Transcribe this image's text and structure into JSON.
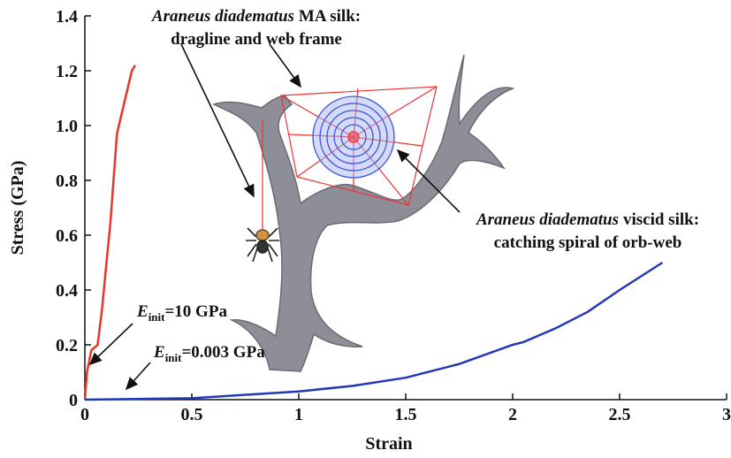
{
  "chart_data": {
    "type": "line",
    "xlabel": "Strain",
    "ylabel": "Stress (GPa)",
    "xlim": [
      0,
      3
    ],
    "xticks": [
      0,
      0.5,
      1,
      1.5,
      2,
      2.5,
      3
    ],
    "ylim": [
      0,
      1.4
    ],
    "yticks": [
      0,
      0.2,
      0.4,
      0.6,
      0.8,
      {
        "value": 1,
        "label": "1.0"
      },
      1.2,
      1.4
    ],
    "series": [
      {
        "color": "#e8342a",
        "x": [
          0,
          0.01,
          0.03,
          0.06,
          0.08,
          0.12,
          0.15,
          0.18,
          0.22,
          0.235
        ],
        "values": [
          0,
          0.1,
          0.18,
          0.2,
          0.33,
          0.65,
          0.97,
          1.07,
          1.2,
          1.22
        ]
      },
      {
        "color": "#2238b8",
        "x": [
          0,
          0.5,
          1,
          1.25,
          1.5,
          1.75,
          2,
          2.05,
          2.2,
          2.35,
          2.5,
          2.7
        ],
        "values": [
          0,
          0.005,
          0.03,
          0.05,
          0.08,
          0.13,
          0.2,
          0.21,
          0.26,
          0.32,
          0.4,
          0.5
        ]
      }
    ],
    "annotations": [
      {
        "species": "Araneus diadematus",
        "silk": "MA silk:",
        "description": "dragline and web frame"
      },
      {
        "species": "Araneus diadematus",
        "silk": "viscid silk:",
        "description": "catching spiral of orb-web"
      },
      {
        "symbol": "E",
        "subscript": "init",
        "text": "=10 GPa"
      },
      {
        "symbol": "E",
        "subscript": "init",
        "text": "=0.003 GPa"
      }
    ]
  }
}
